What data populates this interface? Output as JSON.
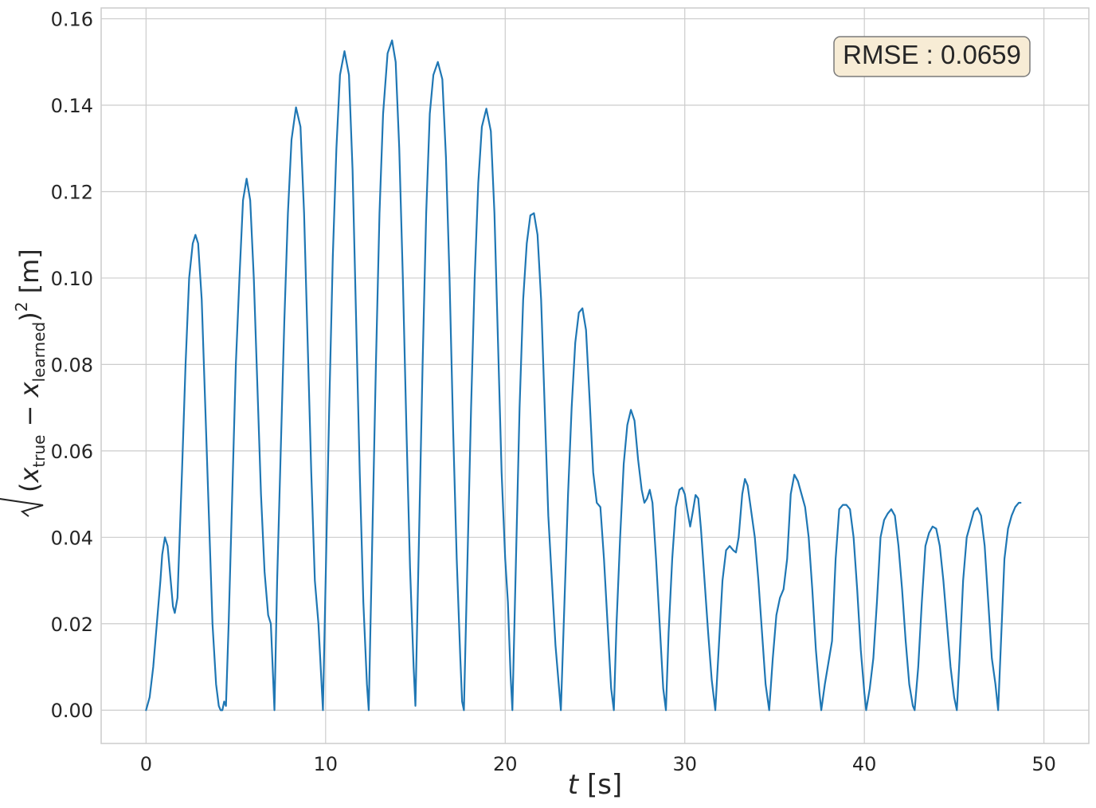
{
  "chart_data": {
    "type": "line",
    "title": "",
    "xlabel": "t [s]",
    "ylabel": "sqrt((x_true - x_learned)^2) [m]",
    "xlim": [
      -2.5,
      52.5
    ],
    "ylim": [
      -0.0077,
      0.1625
    ],
    "xticks": [
      0,
      10,
      20,
      30,
      40,
      50
    ],
    "xtick_labels": [
      "0",
      "10",
      "20",
      "30",
      "40",
      "50"
    ],
    "yticks": [
      0.0,
      0.02,
      0.04,
      0.06,
      0.08,
      0.1,
      0.12,
      0.14,
      0.16
    ],
    "ytick_labels": [
      "0.00",
      "0.02",
      "0.04",
      "0.06",
      "0.08",
      "0.10",
      "0.12",
      "0.14",
      "0.16"
    ],
    "grid": true,
    "line_color": "#1f77b4",
    "annotation": {
      "text": "RMSE : 0.0659",
      "position": "top-right",
      "facecolor": "#f7ecd5",
      "edgecolor": "#7a7a7a"
    },
    "series": [
      {
        "values": [
          [
            0.0,
            0.0
          ],
          [
            0.2,
            0.003
          ],
          [
            0.4,
            0.01
          ],
          [
            0.6,
            0.02
          ],
          [
            0.8,
            0.03
          ],
          [
            0.9,
            0.036
          ],
          [
            1.05,
            0.04
          ],
          [
            1.2,
            0.038
          ],
          [
            1.35,
            0.031
          ],
          [
            1.5,
            0.024
          ],
          [
            1.6,
            0.0225
          ],
          [
            1.75,
            0.026
          ],
          [
            2.0,
            0.055
          ],
          [
            2.2,
            0.08
          ],
          [
            2.4,
            0.1
          ],
          [
            2.6,
            0.108
          ],
          [
            2.75,
            0.11
          ],
          [
            2.9,
            0.108
          ],
          [
            3.1,
            0.095
          ],
          [
            3.3,
            0.07
          ],
          [
            3.5,
            0.045
          ],
          [
            3.7,
            0.02
          ],
          [
            3.9,
            0.006
          ],
          [
            4.05,
            0.001
          ],
          [
            4.15,
            0.0
          ],
          [
            4.25,
            0.0
          ],
          [
            4.35,
            0.002
          ],
          [
            4.45,
            0.001
          ],
          [
            4.6,
            0.02
          ],
          [
            4.8,
            0.05
          ],
          [
            5.0,
            0.08
          ],
          [
            5.2,
            0.1
          ],
          [
            5.4,
            0.118
          ],
          [
            5.6,
            0.123
          ],
          [
            5.8,
            0.118
          ],
          [
            6.0,
            0.1
          ],
          [
            6.2,
            0.075
          ],
          [
            6.4,
            0.05
          ],
          [
            6.6,
            0.032
          ],
          [
            6.8,
            0.022
          ],
          [
            6.95,
            0.02
          ],
          [
            7.05,
            0.01
          ],
          [
            7.15,
            0.0
          ],
          [
            7.3,
            0.03
          ],
          [
            7.5,
            0.06
          ],
          [
            7.7,
            0.09
          ],
          [
            7.9,
            0.115
          ],
          [
            8.1,
            0.132
          ],
          [
            8.35,
            0.1395
          ],
          [
            8.6,
            0.135
          ],
          [
            8.8,
            0.115
          ],
          [
            9.0,
            0.085
          ],
          [
            9.2,
            0.055
          ],
          [
            9.4,
            0.03
          ],
          [
            9.6,
            0.02
          ],
          [
            9.75,
            0.008
          ],
          [
            9.85,
            0.0
          ],
          [
            10.0,
            0.03
          ],
          [
            10.2,
            0.07
          ],
          [
            10.4,
            0.105
          ],
          [
            10.6,
            0.13
          ],
          [
            10.8,
            0.147
          ],
          [
            11.05,
            0.1525
          ],
          [
            11.3,
            0.147
          ],
          [
            11.5,
            0.125
          ],
          [
            11.7,
            0.09
          ],
          [
            11.9,
            0.055
          ],
          [
            12.1,
            0.025
          ],
          [
            12.3,
            0.006
          ],
          [
            12.4,
            0.0
          ],
          [
            12.6,
            0.04
          ],
          [
            12.8,
            0.08
          ],
          [
            13.0,
            0.115
          ],
          [
            13.2,
            0.138
          ],
          [
            13.45,
            0.152
          ],
          [
            13.7,
            0.155
          ],
          [
            13.9,
            0.15
          ],
          [
            14.1,
            0.13
          ],
          [
            14.3,
            0.1
          ],
          [
            14.5,
            0.065
          ],
          [
            14.7,
            0.033
          ],
          [
            14.9,
            0.01
          ],
          [
            15.0,
            0.001
          ],
          [
            15.2,
            0.04
          ],
          [
            15.4,
            0.08
          ],
          [
            15.6,
            0.115
          ],
          [
            15.8,
            0.138
          ],
          [
            16.0,
            0.147
          ],
          [
            16.25,
            0.15
          ],
          [
            16.5,
            0.146
          ],
          [
            16.7,
            0.128
          ],
          [
            16.9,
            0.1
          ],
          [
            17.1,
            0.065
          ],
          [
            17.3,
            0.035
          ],
          [
            17.5,
            0.012
          ],
          [
            17.6,
            0.002
          ],
          [
            17.7,
            0.0
          ],
          [
            17.9,
            0.035
          ],
          [
            18.1,
            0.07
          ],
          [
            18.3,
            0.1
          ],
          [
            18.5,
            0.122
          ],
          [
            18.7,
            0.135
          ],
          [
            18.95,
            0.1392
          ],
          [
            19.2,
            0.134
          ],
          [
            19.4,
            0.115
          ],
          [
            19.6,
            0.085
          ],
          [
            19.8,
            0.055
          ],
          [
            20.0,
            0.035
          ],
          [
            20.15,
            0.025
          ],
          [
            20.3,
            0.008
          ],
          [
            20.4,
            0.0
          ],
          [
            20.6,
            0.035
          ],
          [
            20.8,
            0.07
          ],
          [
            21.0,
            0.095
          ],
          [
            21.2,
            0.108
          ],
          [
            21.4,
            0.1145
          ],
          [
            21.6,
            0.115
          ],
          [
            21.8,
            0.11
          ],
          [
            22.0,
            0.095
          ],
          [
            22.2,
            0.07
          ],
          [
            22.4,
            0.045
          ],
          [
            22.6,
            0.03
          ],
          [
            22.8,
            0.015
          ],
          [
            23.0,
            0.005
          ],
          [
            23.1,
            0.0
          ],
          [
            23.3,
            0.025
          ],
          [
            23.5,
            0.05
          ],
          [
            23.7,
            0.07
          ],
          [
            23.9,
            0.085
          ],
          [
            24.1,
            0.092
          ],
          [
            24.3,
            0.093
          ],
          [
            24.5,
            0.088
          ],
          [
            24.7,
            0.072
          ],
          [
            24.9,
            0.055
          ],
          [
            25.1,
            0.048
          ],
          [
            25.3,
            0.047
          ],
          [
            25.5,
            0.035
          ],
          [
            25.7,
            0.02
          ],
          [
            25.9,
            0.005
          ],
          [
            26.05,
            0.0
          ],
          [
            26.2,
            0.02
          ],
          [
            26.4,
            0.04
          ],
          [
            26.6,
            0.057
          ],
          [
            26.8,
            0.066
          ],
          [
            27.0,
            0.0695
          ],
          [
            27.2,
            0.067
          ],
          [
            27.4,
            0.058
          ],
          [
            27.6,
            0.051
          ],
          [
            27.75,
            0.048
          ],
          [
            27.9,
            0.049
          ],
          [
            28.05,
            0.051
          ],
          [
            28.2,
            0.048
          ],
          [
            28.4,
            0.035
          ],
          [
            28.6,
            0.02
          ],
          [
            28.8,
            0.005
          ],
          [
            28.95,
            0.0
          ],
          [
            29.1,
            0.018
          ],
          [
            29.3,
            0.035
          ],
          [
            29.5,
            0.047
          ],
          [
            29.7,
            0.051
          ],
          [
            29.85,
            0.0515
          ],
          [
            30.0,
            0.05
          ],
          [
            30.15,
            0.046
          ],
          [
            30.3,
            0.0425
          ],
          [
            30.45,
            0.046
          ],
          [
            30.6,
            0.0498
          ],
          [
            30.75,
            0.049
          ],
          [
            30.9,
            0.042
          ],
          [
            31.1,
            0.03
          ],
          [
            31.3,
            0.018
          ],
          [
            31.5,
            0.007
          ],
          [
            31.7,
            0.0
          ],
          [
            31.9,
            0.015
          ],
          [
            32.1,
            0.03
          ],
          [
            32.3,
            0.037
          ],
          [
            32.5,
            0.038
          ],
          [
            32.7,
            0.037
          ],
          [
            32.85,
            0.0365
          ],
          [
            33.0,
            0.04
          ],
          [
            33.2,
            0.05
          ],
          [
            33.35,
            0.0535
          ],
          [
            33.5,
            0.052
          ],
          [
            33.7,
            0.046
          ],
          [
            33.9,
            0.04
          ],
          [
            34.1,
            0.03
          ],
          [
            34.3,
            0.018
          ],
          [
            34.5,
            0.006
          ],
          [
            34.7,
            0.0
          ],
          [
            34.9,
            0.012
          ],
          [
            35.1,
            0.022
          ],
          [
            35.3,
            0.026
          ],
          [
            35.5,
            0.028
          ],
          [
            35.7,
            0.035
          ],
          [
            35.9,
            0.05
          ],
          [
            36.1,
            0.0545
          ],
          [
            36.3,
            0.053
          ],
          [
            36.5,
            0.05
          ],
          [
            36.7,
            0.047
          ],
          [
            36.9,
            0.04
          ],
          [
            37.1,
            0.028
          ],
          [
            37.3,
            0.014
          ],
          [
            37.5,
            0.004
          ],
          [
            37.6,
            0.0
          ],
          [
            37.8,
            0.006
          ],
          [
            38.0,
            0.011
          ],
          [
            38.2,
            0.016
          ],
          [
            38.4,
            0.035
          ],
          [
            38.6,
            0.0465
          ],
          [
            38.8,
            0.0475
          ],
          [
            39.0,
            0.0475
          ],
          [
            39.2,
            0.0465
          ],
          [
            39.4,
            0.04
          ],
          [
            39.6,
            0.028
          ],
          [
            39.8,
            0.014
          ],
          [
            40.0,
            0.004
          ],
          [
            40.1,
            0.0
          ],
          [
            40.3,
            0.005
          ],
          [
            40.5,
            0.012
          ],
          [
            40.7,
            0.025
          ],
          [
            40.9,
            0.04
          ],
          [
            41.1,
            0.044
          ],
          [
            41.3,
            0.0455
          ],
          [
            41.5,
            0.0465
          ],
          [
            41.7,
            0.045
          ],
          [
            41.9,
            0.038
          ],
          [
            42.1,
            0.028
          ],
          [
            42.3,
            0.016
          ],
          [
            42.5,
            0.006
          ],
          [
            42.7,
            0.001
          ],
          [
            42.8,
            0.0
          ],
          [
            43.0,
            0.01
          ],
          [
            43.2,
            0.025
          ],
          [
            43.4,
            0.038
          ],
          [
            43.6,
            0.041
          ],
          [
            43.8,
            0.0425
          ],
          [
            44.0,
            0.042
          ],
          [
            44.2,
            0.038
          ],
          [
            44.4,
            0.03
          ],
          [
            44.6,
            0.02
          ],
          [
            44.8,
            0.01
          ],
          [
            45.0,
            0.003
          ],
          [
            45.15,
            0.0
          ],
          [
            45.3,
            0.012
          ],
          [
            45.5,
            0.03
          ],
          [
            45.7,
            0.04
          ],
          [
            45.9,
            0.043
          ],
          [
            46.1,
            0.046
          ],
          [
            46.3,
            0.0468
          ],
          [
            46.5,
            0.045
          ],
          [
            46.7,
            0.038
          ],
          [
            46.9,
            0.025
          ],
          [
            47.1,
            0.012
          ],
          [
            47.3,
            0.006
          ],
          [
            47.45,
            0.0
          ],
          [
            47.6,
            0.015
          ],
          [
            47.8,
            0.035
          ],
          [
            48.0,
            0.042
          ],
          [
            48.2,
            0.045
          ],
          [
            48.4,
            0.047
          ],
          [
            48.6,
            0.048
          ],
          [
            48.7,
            0.048
          ]
        ]
      }
    ]
  }
}
